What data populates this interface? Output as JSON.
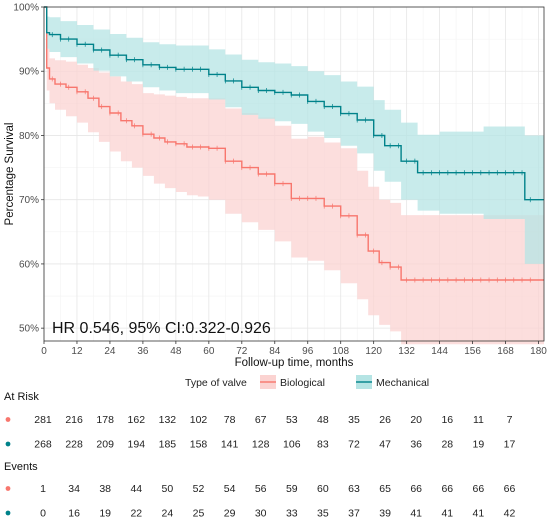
{
  "chart_data": {
    "type": "line",
    "subtype": "kaplan-meier",
    "xlabel": "Follow-up time, months",
    "ylabel": "Percentage Survival",
    "xlim": [
      0,
      182
    ],
    "ylim": [
      48,
      100
    ],
    "xticks": [
      0,
      12,
      24,
      36,
      48,
      60,
      72,
      84,
      96,
      108,
      120,
      132,
      144,
      156,
      168,
      180
    ],
    "yticks": [
      50,
      60,
      70,
      80,
      90,
      100
    ],
    "ytick_labels": [
      "50%",
      "60%",
      "70%",
      "80%",
      "90%",
      "100%"
    ],
    "grid": true,
    "annotation": "HR 0.546, 95% CI:0.322-0.926",
    "legend": {
      "title": "Type of valve",
      "position": "bottom",
      "entries": [
        "Biological",
        "Mechanical"
      ]
    },
    "series": [
      {
        "name": "Biological",
        "color": "#F8766D",
        "band_color": "#fbd3d1",
        "x": [
          0,
          1,
          2,
          4,
          8,
          12,
          16,
          20,
          24,
          28,
          32,
          36,
          40,
          44,
          48,
          52,
          56,
          60,
          66,
          72,
          78,
          84,
          90,
          96,
          102,
          108,
          114,
          118,
          122,
          126,
          130,
          136,
          182
        ],
        "y": [
          100,
          90.5,
          88.8,
          88,
          87.5,
          86.8,
          85.8,
          84.5,
          83.5,
          82.3,
          81.5,
          80.2,
          79.6,
          79,
          78.7,
          78.2,
          78.2,
          78,
          76,
          75,
          74,
          72.5,
          70.2,
          70.2,
          69,
          67.5,
          64.5,
          62,
          60.2,
          59.5,
          57.5,
          57.5,
          57.5
        ],
        "lower": [
          100,
          87,
          85,
          84,
          83,
          82,
          80.5,
          79,
          77.5,
          76,
          75,
          73.7,
          72.5,
          71.8,
          71.2,
          70.7,
          70.5,
          70,
          67.8,
          66.5,
          65.3,
          63.5,
          61,
          60.5,
          59,
          57,
          54.5,
          52,
          50.5,
          49.5,
          47.5,
          47.5,
          47.5
        ],
        "upper": [
          100,
          93.5,
          92,
          91.7,
          91.5,
          91,
          90.5,
          89.8,
          89.2,
          88.4,
          88,
          86.6,
          86.4,
          86.2,
          86,
          85.8,
          85.8,
          85.8,
          84.2,
          83.5,
          82.8,
          81.5,
          79.5,
          79.8,
          78.9,
          78,
          74.5,
          72,
          70,
          69.5,
          67.6,
          67.6,
          67.6
        ]
      },
      {
        "name": "Mechanical",
        "color": "#00828a",
        "band_color": "#b5e4e4",
        "x": [
          0,
          1,
          2,
          6,
          12,
          18,
          24,
          30,
          36,
          42,
          48,
          60,
          66,
          72,
          78,
          84,
          90,
          96,
          102,
          108,
          114,
          120,
          124,
          130,
          136,
          144,
          160,
          175,
          182
        ],
        "y": [
          100,
          96,
          95.7,
          95,
          94.2,
          93.3,
          92.5,
          91.8,
          91,
          90.6,
          90.3,
          89.5,
          88.5,
          87.5,
          87,
          86.7,
          86.3,
          85.3,
          84.5,
          83.4,
          82.4,
          80,
          78.4,
          76,
          74.2,
          74.2,
          74.2,
          70,
          70
        ],
        "lower": [
          100,
          93.5,
          93,
          92.2,
          91.2,
          90.1,
          89.2,
          88.4,
          87.5,
          87,
          86.6,
          85.6,
          84.4,
          83.2,
          82.6,
          82.2,
          81.8,
          80.6,
          79.6,
          78.4,
          77.2,
          74.5,
          72.8,
          70,
          68.3,
          67.8,
          67,
          60,
          60
        ],
        "upper": [
          100,
          98.5,
          98.4,
          97.8,
          97.2,
          96.5,
          95.8,
          95.2,
          94.5,
          94.2,
          94,
          93.4,
          92.6,
          91.8,
          91.4,
          91.2,
          90.8,
          90,
          89.4,
          88.4,
          87.6,
          85.5,
          84,
          82,
          80.1,
          80.6,
          81.4,
          80,
          80
        ]
      }
    ]
  },
  "risk_table": {
    "at_risk_title": "At Risk",
    "events_title": "Events",
    "columns": [
      "0",
      "12",
      "24",
      "36",
      "48",
      "60",
      "72",
      "84",
      "96",
      "108",
      "120",
      "132",
      "144",
      "156",
      "168",
      "180"
    ],
    "at_risk": [
      {
        "name": "Biological",
        "color": "#F8766D",
        "values": [
          281,
          216,
          178,
          162,
          132,
          102,
          78,
          67,
          53,
          48,
          35,
          26,
          20,
          16,
          11,
          7
        ]
      },
      {
        "name": "Mechanical",
        "color": "#00828a",
        "values": [
          268,
          228,
          209,
          194,
          185,
          158,
          141,
          128,
          106,
          83,
          72,
          47,
          36,
          28,
          19,
          17
        ]
      }
    ],
    "events": [
      {
        "name": "Biological",
        "color": "#F8766D",
        "values": [
          1,
          34,
          38,
          44,
          50,
          52,
          54,
          56,
          59,
          60,
          63,
          65,
          66,
          66,
          66,
          66
        ]
      },
      {
        "name": "Mechanical",
        "color": "#00828a",
        "values": [
          0,
          16,
          19,
          22,
          24,
          25,
          29,
          30,
          33,
          35,
          37,
          39,
          41,
          41,
          41,
          42
        ]
      }
    ]
  }
}
